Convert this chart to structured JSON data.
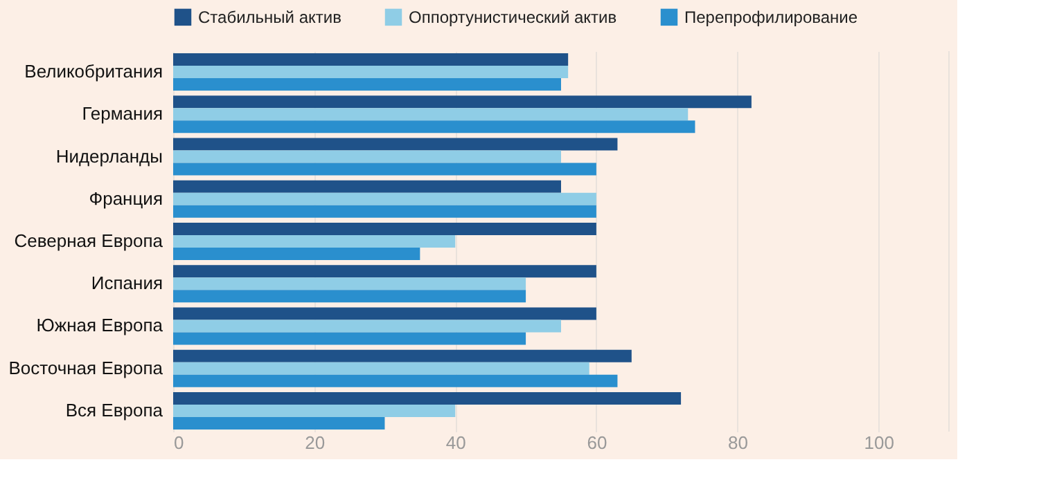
{
  "chart_data": {
    "type": "bar",
    "orientation": "horizontal",
    "categories": [
      "Великобритания",
      "Германия",
      "Нидерланды",
      "Франция",
      "Северная Европа",
      "Испания",
      "Южная Европа",
      "Восточная Европа",
      "Вся Европа"
    ],
    "series": [
      {
        "name": "Стабильный актив",
        "color": "#1f5289",
        "values": [
          56,
          82,
          63,
          55,
          60,
          60,
          60,
          65,
          72
        ]
      },
      {
        "name": "Оппортунистический актив",
        "color": "#8fcde6",
        "values": [
          56,
          73,
          55,
          60,
          40,
          50,
          55,
          59,
          40
        ]
      },
      {
        "name": "Перепрофилирование",
        "color": "#2a8fce",
        "values": [
          55,
          74,
          60,
          60,
          35,
          50,
          50,
          63,
          30
        ]
      }
    ],
    "xlim": [
      0,
      110
    ],
    "xticks": [
      0,
      20,
      40,
      60,
      80,
      100
    ],
    "grid": "x",
    "legend": "top left"
  }
}
